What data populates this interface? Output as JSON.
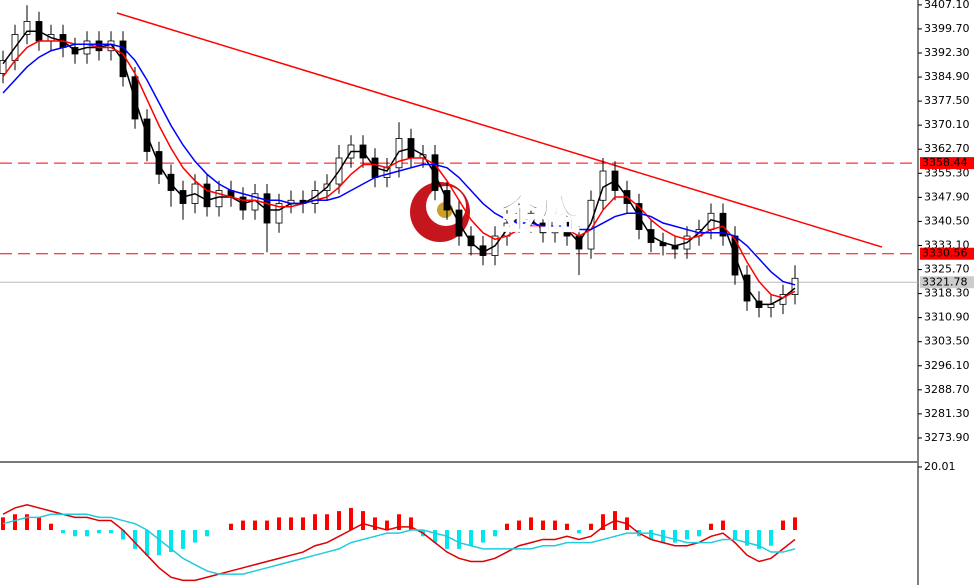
{
  "chart_data": [
    {
      "type": "candlestick",
      "watermark": "金盛",
      "xlim": [
        -0.25,
        76.25
      ],
      "ylim": [
        3266.5,
        3408.6
      ],
      "yticks": [
        {
          "value": 3407.1,
          "label": "3407.10"
        },
        {
          "value": 3399.7,
          "label": "3399.70"
        },
        {
          "value": 3392.3,
          "label": "3392.30"
        },
        {
          "value": 3384.9,
          "label": "3384.90"
        },
        {
          "value": 3377.5,
          "label": "3377.50"
        },
        {
          "value": 3370.1,
          "label": "3370.10"
        },
        {
          "value": 3362.7,
          "label": "3362.70"
        },
        {
          "value": 3355.3,
          "label": "3355.30"
        },
        {
          "value": 3347.9,
          "label": "3347.90"
        },
        {
          "value": 3340.5,
          "label": "3340.50"
        },
        {
          "value": 3333.1,
          "label": "3333.10"
        },
        {
          "value": 3325.7,
          "label": "3325.70"
        },
        {
          "value": 3318.3,
          "label": "3318.30"
        },
        {
          "value": 3310.9,
          "label": "3310.90"
        },
        {
          "value": 3303.5,
          "label": "3303.50"
        },
        {
          "value": 3296.1,
          "label": "3296.10"
        },
        {
          "value": 3288.7,
          "label": "3288.70"
        },
        {
          "value": 3281.3,
          "label": "3281.30"
        },
        {
          "value": 3273.9,
          "label": "3273.90"
        }
      ],
      "levels": [
        3358.44,
        3330.56
      ],
      "level_color": "#ff0000",
      "current_price": 3321.78,
      "trendline": {
        "color": "#ff0000",
        "x": [
          9.5,
          73.25
        ],
        "y": [
          3404.6,
          3332.6
        ]
      },
      "open": [
        3386,
        3390,
        3398,
        3402,
        3396,
        3398,
        3394,
        3392,
        3396,
        3393,
        3396,
        3385,
        3372,
        3362,
        3355,
        3350,
        3346,
        3352,
        3345,
        3350,
        3348,
        3344,
        3349,
        3340,
        3346,
        3347,
        3346,
        3350,
        3352,
        3360,
        3364,
        3360,
        3354,
        3357,
        3366,
        3360,
        3361,
        3350,
        3344,
        3336,
        3333,
        3330,
        3336,
        3340,
        3343,
        3340,
        3337,
        3341,
        3336,
        3332,
        3347,
        3356,
        3350,
        3346,
        3338,
        3334,
        3333,
        3332,
        3336,
        3338,
        3343,
        3336,
        3324,
        3316,
        3314,
        3315,
        3318
      ],
      "high": [
        3393,
        3401,
        3407,
        3405,
        3401,
        3401,
        3397,
        3399,
        3399,
        3399,
        3399,
        3388,
        3375,
        3365,
        3358,
        3353,
        3355,
        3355,
        3353,
        3353,
        3351,
        3352,
        3352,
        3349,
        3350,
        3350,
        3353,
        3355,
        3364,
        3367,
        3367,
        3363,
        3360,
        3371,
        3369,
        3364,
        3364,
        3353,
        3347,
        3339,
        3336,
        3339,
        3344,
        3346,
        3346,
        3343,
        3344,
        3344,
        3339,
        3350,
        3360,
        3359,
        3353,
        3349,
        3341,
        3337,
        3336,
        3339,
        3341,
        3346,
        3346,
        3339,
        3327,
        3319,
        3318,
        3321,
        3327
      ],
      "low": [
        3383,
        3387,
        3395,
        3393,
        3393,
        3391,
        3389,
        3389,
        3390,
        3390,
        3382,
        3369,
        3359,
        3352,
        3345,
        3341,
        3343,
        3342,
        3342,
        3345,
        3341,
        3341,
        3331,
        3337,
        3343,
        3343,
        3343,
        3347,
        3349,
        3357,
        3357,
        3351,
        3351,
        3354,
        3357,
        3357,
        3347,
        3341,
        3333,
        3330,
        3327,
        3327,
        3333,
        3337,
        3337,
        3334,
        3334,
        3333,
        3324,
        3329,
        3344,
        3347,
        3343,
        3335,
        3331,
        3330,
        3329,
        3329,
        3333,
        3335,
        3333,
        3321,
        3313,
        3311,
        3311,
        3312,
        3315
      ],
      "close": [
        3390,
        3398,
        3402,
        3396,
        3398,
        3394,
        3392,
        3396,
        3393,
        3396,
        3385,
        3372,
        3362,
        3355,
        3350,
        3346,
        3352,
        3345,
        3350,
        3348,
        3344,
        3349,
        3340,
        3346,
        3347,
        3346,
        3350,
        3352,
        3360,
        3364,
        3360,
        3354,
        3357,
        3366,
        3360,
        3361,
        3350,
        3344,
        3336,
        3333,
        3330,
        3336,
        3340,
        3343,
        3340,
        3337,
        3341,
        3336,
        3332,
        3347,
        3356,
        3350,
        3346,
        3338,
        3334,
        3333,
        3332,
        3336,
        3338,
        3343,
        3336,
        3324,
        3316,
        3314,
        3315,
        3318,
        3323
      ],
      "ma_lines": [
        {
          "color": "#000000",
          "values": [
            3389,
            3394,
            3399,
            3399,
            3397,
            3396,
            3393,
            3394,
            3394,
            3395,
            3390,
            3378,
            3367,
            3358,
            3352,
            3348,
            3349,
            3347,
            3348,
            3348,
            3346,
            3347,
            3344,
            3344,
            3346,
            3346,
            3348,
            3351,
            3356,
            3362,
            3362,
            3357,
            3356,
            3362,
            3363,
            3361,
            3355,
            3347,
            3340,
            3334,
            3331,
            3333,
            3338,
            3342,
            3341,
            3338,
            3339,
            3338,
            3334,
            3340,
            3351,
            3353,
            3348,
            3342,
            3336,
            3334,
            3333,
            3334,
            3337,
            3341,
            3340,
            3330,
            3320,
            3315,
            3315,
            3317,
            3320
          ]
        },
        {
          "color": "#ff0000",
          "values": [
            3385,
            3390,
            3394,
            3396,
            3396,
            3396,
            3395,
            3395,
            3394,
            3394,
            3392,
            3386,
            3378,
            3370,
            3363,
            3357,
            3353,
            3350,
            3349,
            3348,
            3347,
            3347,
            3346,
            3345,
            3345,
            3346,
            3347,
            3348,
            3351,
            3355,
            3358,
            3358,
            3357,
            3359,
            3360,
            3360,
            3358,
            3353,
            3347,
            3341,
            3337,
            3335,
            3336,
            3338,
            3339,
            3339,
            3339,
            3338,
            3336,
            3338,
            3344,
            3348,
            3348,
            3345,
            3341,
            3338,
            3336,
            3335,
            3336,
            3338,
            3339,
            3335,
            3328,
            3322,
            3318,
            3317,
            3319
          ]
        },
        {
          "color": "#0000ff",
          "values": [
            3380,
            3384,
            3388,
            3391,
            3393,
            3394,
            3395,
            3395,
            3395,
            3395,
            3394,
            3390,
            3384,
            3377,
            3370,
            3364,
            3359,
            3355,
            3352,
            3350,
            3349,
            3348,
            3347,
            3347,
            3346,
            3346,
            3347,
            3347,
            3348,
            3350,
            3352,
            3354,
            3355,
            3356,
            3357,
            3358,
            3358,
            3357,
            3354,
            3350,
            3346,
            3343,
            3341,
            3340,
            3340,
            3339,
            3339,
            3339,
            3338,
            3338,
            3340,
            3342,
            3343,
            3343,
            3342,
            3340,
            3339,
            3338,
            3337,
            3337,
            3337,
            3336,
            3333,
            3329,
            3325,
            3322,
            3321
          ]
        }
      ]
    },
    {
      "type": "macd",
      "xlim": [
        -0.25,
        76.25
      ],
      "ylim": [
        -17.46,
        21.27
      ],
      "yticks": [
        20.01
      ],
      "histogram": {
        "up": "#ff0000",
        "down": "#00e5ee",
        "values": [
          4,
          5,
          5,
          4,
          2,
          -1,
          -2,
          -2,
          -1,
          -1,
          -3,
          -6,
          -8,
          -8,
          -7,
          -6,
          -4,
          -2,
          0,
          2,
          3,
          3,
          3,
          4,
          4,
          4,
          5,
          5,
          6,
          7,
          6,
          4,
          3,
          5,
          4,
          -2,
          -4,
          -6,
          -6,
          -5,
          -4,
          -2,
          2,
          3,
          4,
          3,
          3,
          2,
          -1,
          2,
          5,
          6,
          4,
          -2,
          -3,
          -4,
          -4,
          -3,
          -2,
          2,
          3,
          -3,
          -5,
          -6,
          -5,
          3,
          4
        ]
      },
      "lines": [
        {
          "color": "#dd0000",
          "values": [
            5,
            7,
            8,
            7,
            6,
            5,
            4,
            4,
            3,
            3,
            0,
            -4,
            -8,
            -12,
            -15,
            -16,
            -16,
            -15,
            -14,
            -13,
            -12,
            -11,
            -10,
            -9,
            -8,
            -7,
            -5,
            -4,
            -2,
            0,
            2,
            1,
            0,
            1,
            1,
            -1,
            -4,
            -7,
            -9,
            -10,
            -10,
            -9,
            -7,
            -5,
            -4,
            -3,
            -3,
            -2,
            -3,
            -2,
            1,
            3,
            2,
            -1,
            -3,
            -4,
            -5,
            -5,
            -4,
            -2,
            -1,
            -4,
            -8,
            -10,
            -9,
            -6,
            -3
          ]
        },
        {
          "color": "#22ccdd",
          "values": [
            2,
            3,
            4,
            4,
            5,
            5,
            5,
            5,
            4,
            4,
            3,
            2,
            0,
            -3,
            -6,
            -9,
            -11,
            -13,
            -14,
            -14,
            -14,
            -13,
            -12,
            -11,
            -10,
            -9,
            -8,
            -7,
            -6,
            -4,
            -3,
            -2,
            -1,
            -1,
            0,
            0,
            -1,
            -2,
            -4,
            -5,
            -6,
            -6,
            -6,
            -6,
            -6,
            -5,
            -5,
            -4,
            -4,
            -4,
            -3,
            -2,
            -1,
            -1,
            -1,
            -2,
            -3,
            -4,
            -4,
            -4,
            -3,
            -3,
            -4,
            -5,
            -7,
            -7,
            -6
          ]
        }
      ]
    }
  ]
}
